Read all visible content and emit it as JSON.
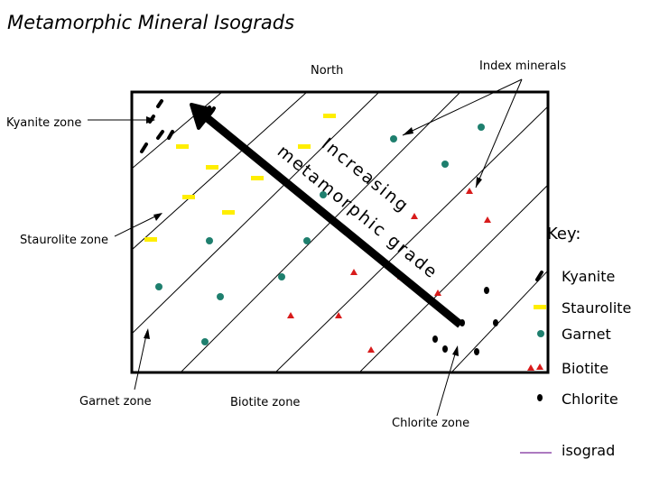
{
  "title": "Metamorphic Mineral Isograds",
  "labels": {
    "north": "North",
    "index_minerals": "Index minerals",
    "kyanite_zone": "Kyanite zone",
    "staurolite_zone": "Staurolite zone",
    "garnet_zone": "Garnet zone",
    "biotite_zone": "Biotite zone",
    "chlorite_zone": "Chlorite zone"
  },
  "arrow_text": "Increasing metamorphic grade",
  "key": {
    "heading": "Key:",
    "items": [
      {
        "label": "Kyanite",
        "symbol": "kyanite-dash",
        "color": "#000000"
      },
      {
        "label": "Staurolite",
        "symbol": "yellow-bar",
        "color": "#ffee00"
      },
      {
        "label": "Garnet",
        "symbol": "teal-hexagon",
        "color": "#1e7f6e"
      },
      {
        "label": "Biotite",
        "symbol": "red-triangle",
        "color": "#d81b1b"
      },
      {
        "label": "Chlorite",
        "symbol": "black-oval",
        "color": "#000000"
      },
      {
        "label": "isograd",
        "symbol": "purple-line",
        "color": "#7a2a9a"
      }
    ]
  },
  "colors": {
    "kyanite": "#000000",
    "staurolite": "#ffee00",
    "garnet": "#1e7f6e",
    "biotite": "#d81b1b",
    "chlorite": "#000000",
    "isograd": "#7a2a9a",
    "arrow": "#000000"
  }
}
